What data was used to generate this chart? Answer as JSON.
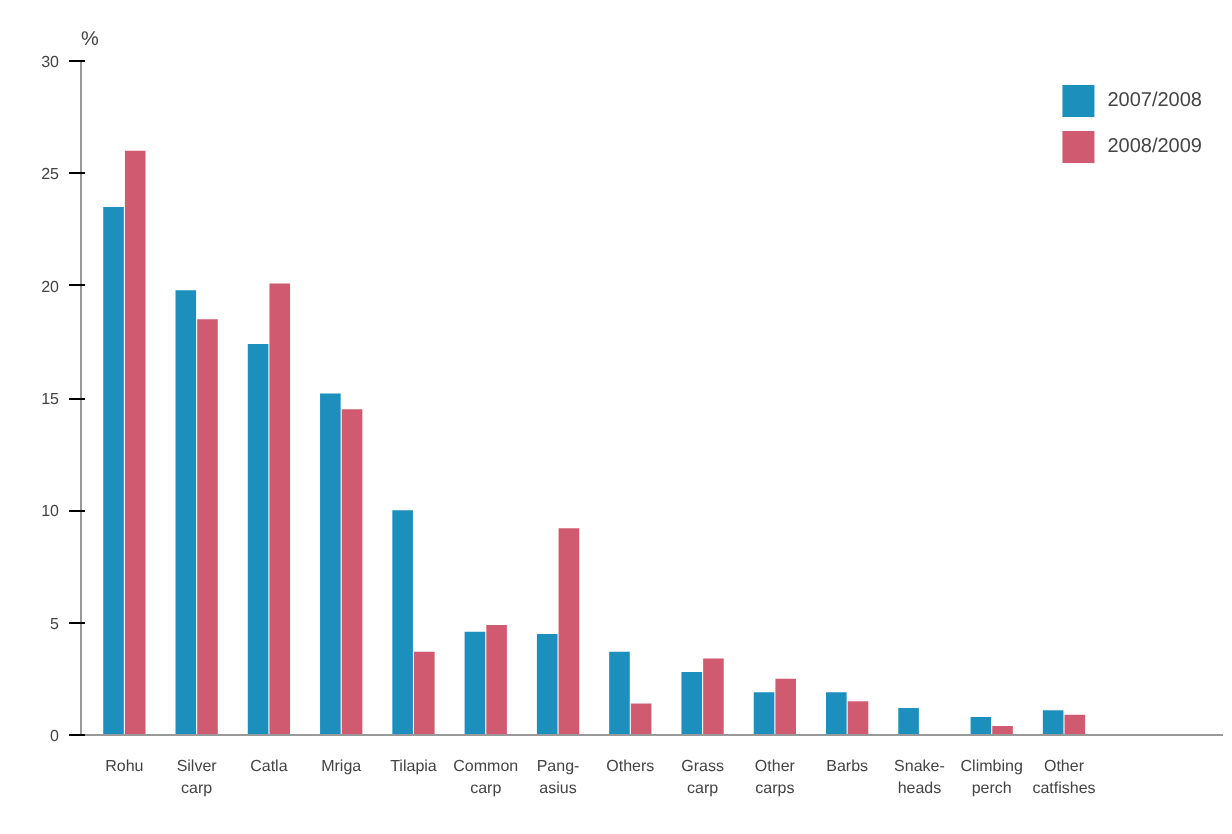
{
  "chart_data": {
    "type": "bar",
    "ylabel": "%",
    "categories": [
      "Rohu",
      "Silver\ncarp",
      "Catla",
      "Mriga",
      "Tilapia",
      "Common\ncarp",
      "Pang-\nasius",
      "Others",
      "Grass\ncarp",
      "Other\ncarps",
      "Barbs",
      "Snake-\nheads",
      "Climbing\nperch",
      "Other\ncatfishes"
    ],
    "series": [
      {
        "name": "2007/2008",
        "color": "#1c8fbd",
        "values": [
          23.5,
          19.8,
          17.4,
          15.2,
          10,
          4.6,
          4.5,
          3.7,
          2.8,
          1.9,
          1.9,
          1.2,
          0.8,
          1.1
        ]
      },
      {
        "name": "2008/2009",
        "color": "#d05a70",
        "values": [
          26,
          18.5,
          20.1,
          14.5,
          3.7,
          4.9,
          9.2,
          1.4,
          3.4,
          2.5,
          1.5,
          null,
          0.4,
          0.9
        ]
      }
    ],
    "ylim": [
      0,
      30
    ],
    "yticks": [
      0,
      5,
      10,
      15,
      20,
      25,
      30
    ],
    "grid": false,
    "legend": "top right"
  }
}
